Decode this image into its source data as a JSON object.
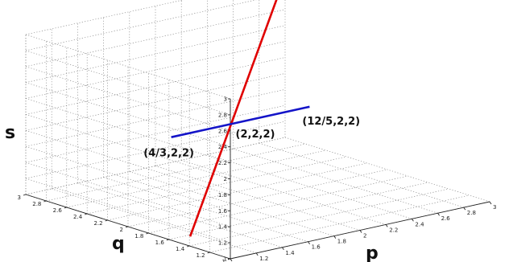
{
  "chart_data": {
    "type": "line3d",
    "title": "",
    "xlabel": "p",
    "ylabel": "q",
    "zlabel": "s",
    "xlim": [
      1,
      3
    ],
    "ylim": [
      1,
      3
    ],
    "zlim": [
      1,
      3
    ],
    "grid": true,
    "x_ticks": [
      "1",
      "1.2",
      "1.4",
      "1.6",
      "1.8",
      "2",
      "2.2",
      "2.4",
      "2.6",
      "2.8",
      "3"
    ],
    "y_ticks": [
      "1",
      "1.2",
      "1.4",
      "1.6",
      "1.8",
      "2",
      "2.2",
      "2.4",
      "2.6",
      "2.8",
      "3"
    ],
    "z_ticks": [
      "1",
      "1.2",
      "1.4",
      "1.6",
      "1.8",
      "2",
      "2.2",
      "2.4",
      "2.6",
      "2.8",
      "3"
    ],
    "series": [
      {
        "color": "#e00000",
        "points": [
          [
            1.14,
            1.57,
            1.0
          ],
          [
            2.91,
            2.91,
            3.0
          ]
        ]
      },
      {
        "color": "#1414c8",
        "points": [
          [
            1.333,
            2.0,
            2.0
          ],
          [
            2.4,
            2.0,
            2.0
          ]
        ]
      }
    ],
    "annotations": [
      {
        "text": "(4/3,2,2)",
        "at": [
          1.333,
          2.0,
          2.0
        ],
        "anchor": "below"
      },
      {
        "text": "(2,2,2)",
        "at": [
          2.0,
          2.0,
          2.0
        ],
        "anchor": "below"
      },
      {
        "text": "(12/5,2,2)",
        "at": [
          2.4,
          2.0,
          2.0
        ],
        "anchor": "below-right"
      }
    ]
  }
}
